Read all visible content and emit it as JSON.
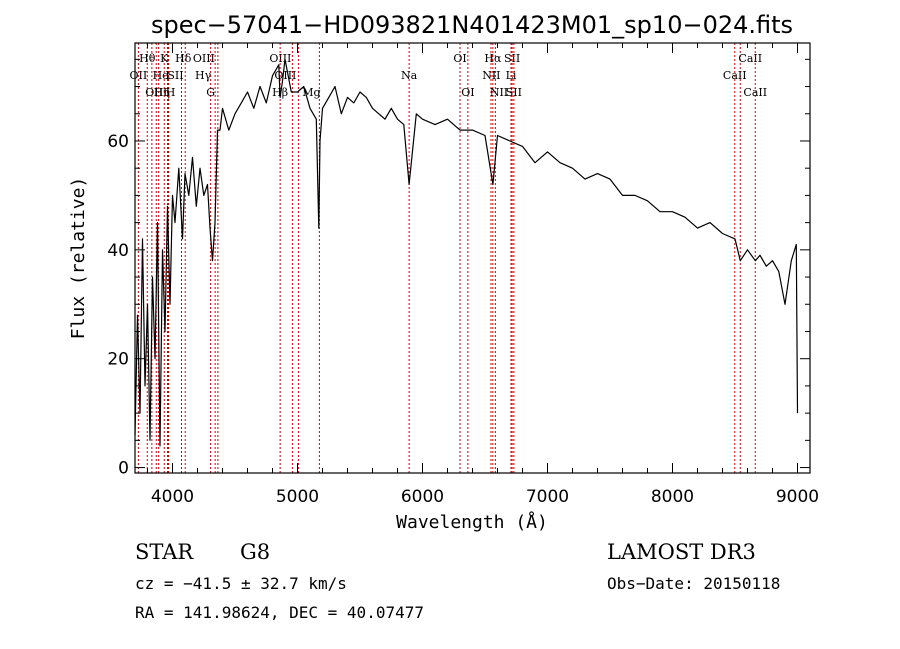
{
  "chart_data": {
    "type": "line",
    "title": "spec−57041−HD093821N401423M01_sp10−024.fits",
    "xlabel": "Wavelength (Å)",
    "ylabel": "Flux (relative)",
    "xlim": [
      3700,
      9100
    ],
    "ylim": [
      -1,
      78
    ],
    "xticks": [
      4000,
      5000,
      6000,
      7000,
      8000,
      9000
    ],
    "yticks": [
      0,
      20,
      40,
      60
    ],
    "grid": false,
    "line_color": "#000000",
    "marker_color": "#cc0000",
    "series": [
      {
        "name": "flux",
        "x": [
          3700,
          3720,
          3740,
          3760,
          3780,
          3800,
          3820,
          3840,
          3860,
          3880,
          3900,
          3920,
          3940,
          3960,
          3980,
          4000,
          4020,
          4050,
          4080,
          4100,
          4130,
          4160,
          4190,
          4220,
          4250,
          4280,
          4300,
          4320,
          4340,
          4360,
          4380,
          4400,
          4450,
          4500,
          4550,
          4600,
          4650,
          4700,
          4750,
          4800,
          4850,
          4861,
          4880,
          4900,
          4950,
          5000,
          5050,
          5100,
          5150,
          5170,
          5180,
          5200,
          5250,
          5300,
          5350,
          5400,
          5450,
          5500,
          5550,
          5600,
          5650,
          5700,
          5750,
          5800,
          5850,
          5893,
          5950,
          6000,
          6100,
          6200,
          6300,
          6400,
          6500,
          6563,
          6600,
          6700,
          6800,
          6900,
          7000,
          7100,
          7200,
          7300,
          7400,
          7500,
          7600,
          7700,
          7800,
          7900,
          8000,
          8100,
          8200,
          8300,
          8400,
          8500,
          8542,
          8600,
          8662,
          8700,
          8750,
          8800,
          8850,
          8900,
          8950,
          8990,
          9000
        ],
        "values": [
          6,
          28,
          10,
          42,
          15,
          30,
          5,
          35,
          20,
          45,
          4,
          40,
          25,
          48,
          30,
          50,
          45,
          55,
          42,
          54,
          50,
          57,
          48,
          55,
          50,
          52,
          44,
          38,
          45,
          62,
          62,
          66,
          62,
          65,
          67,
          69,
          66,
          70,
          67,
          72,
          74,
          68,
          71,
          75,
          69,
          69,
          70,
          66,
          64,
          44,
          60,
          66,
          68,
          70,
          65,
          68,
          67,
          69,
          68,
          66,
          65,
          64,
          66,
          64,
          63,
          52,
          65,
          64,
          63,
          64,
          62,
          62,
          61,
          52,
          61,
          60,
          59,
          56,
          58,
          56,
          55,
          53,
          54,
          53,
          50,
          50,
          49,
          47,
          47,
          46,
          44,
          45,
          43,
          42,
          38,
          40,
          38,
          39,
          37,
          38,
          36,
          30,
          38,
          41,
          10
        ]
      }
    ],
    "line_markers": [
      {
        "label": "Hθ",
        "wavelength": 3798,
        "row": 0,
        "dx": 0
      },
      {
        "label": "OII",
        "wavelength": 3727,
        "row": 1,
        "dx": 0
      },
      {
        "label": "OIII",
        "wavelength": 3870,
        "row": 2,
        "dx": 0
      },
      {
        "label": "He",
        "wavelength": 3889,
        "row": 1,
        "dx": 2
      },
      {
        "label": "Hη",
        "wavelength": 3835,
        "row": 2,
        "dx": 10
      },
      {
        "label": "K",
        "wavelength": 3934,
        "row": 0,
        "dx": 0
      },
      {
        "label": "I",
        "wavelength": 3960,
        "row": 1,
        "dx": 0
      },
      {
        "label": "H",
        "wavelength": 3968,
        "row": 2,
        "dx": 2
      },
      {
        "label": "SII",
        "wavelength": 4072,
        "row": 1,
        "dx": -6
      },
      {
        "label": "Hδ",
        "wavelength": 4102,
        "row": 0,
        "dx": -2
      },
      {
        "label": "OIII",
        "wavelength": 4363,
        "row": 0,
        "dx": -14
      },
      {
        "label": "Hγ",
        "wavelength": 4341,
        "row": 1,
        "dx": -12
      },
      {
        "label": "G",
        "wavelength": 4305,
        "row": 2,
        "dx": 0
      },
      {
        "label": "OIII",
        "wavelength": 5007,
        "row": 0,
        "dx": -18
      },
      {
        "label": "OIII",
        "wavelength": 4959,
        "row": 1,
        "dx": -7
      },
      {
        "label": "Hβ",
        "wavelength": 4861,
        "row": 2,
        "dx": 0
      },
      {
        "label": "Mg",
        "wavelength": 5175,
        "row": 2,
        "dx": -8
      },
      {
        "label": "Na",
        "wavelength": 5893,
        "row": 1,
        "dx": 0
      },
      {
        "label": "OI",
        "wavelength": 6300,
        "row": 0,
        "dx": 0
      },
      {
        "label": "OI",
        "wavelength": 6363,
        "row": 2,
        "dx": 0
      },
      {
        "label": "Hα",
        "wavelength": 6563,
        "row": 0,
        "dx": 0
      },
      {
        "label": "SII",
        "wavelength": 6717,
        "row": 0,
        "dx": 0
      },
      {
        "label": "NII",
        "wavelength": 6583,
        "row": 1,
        "dx": -4
      },
      {
        "label": "Li",
        "wavelength": 6708,
        "row": 1,
        "dx": 0
      },
      {
        "label": "NII",
        "wavelength": 6548,
        "row": 2,
        "dx": 8
      },
      {
        "label": "SII",
        "wavelength": 6731,
        "row": 2,
        "dx": 0
      },
      {
        "label": "CaII",
        "wavelength": 8542,
        "row": 0,
        "dx": 10
      },
      {
        "label": "CaII",
        "wavelength": 8498,
        "row": 1,
        "dx": 0
      },
      {
        "label": "CaII",
        "wavelength": 8662,
        "row": 2,
        "dx": 0
      }
    ]
  },
  "info": {
    "object_class": "STAR",
    "subclass": "G8",
    "survey": "LAMOST DR3",
    "redshift": "cz = −41.5 ± 32.7 km/s",
    "obs_date": "Obs−Date: 20150118",
    "coords": "RA = 141.98624, DEC =  40.07477"
  }
}
